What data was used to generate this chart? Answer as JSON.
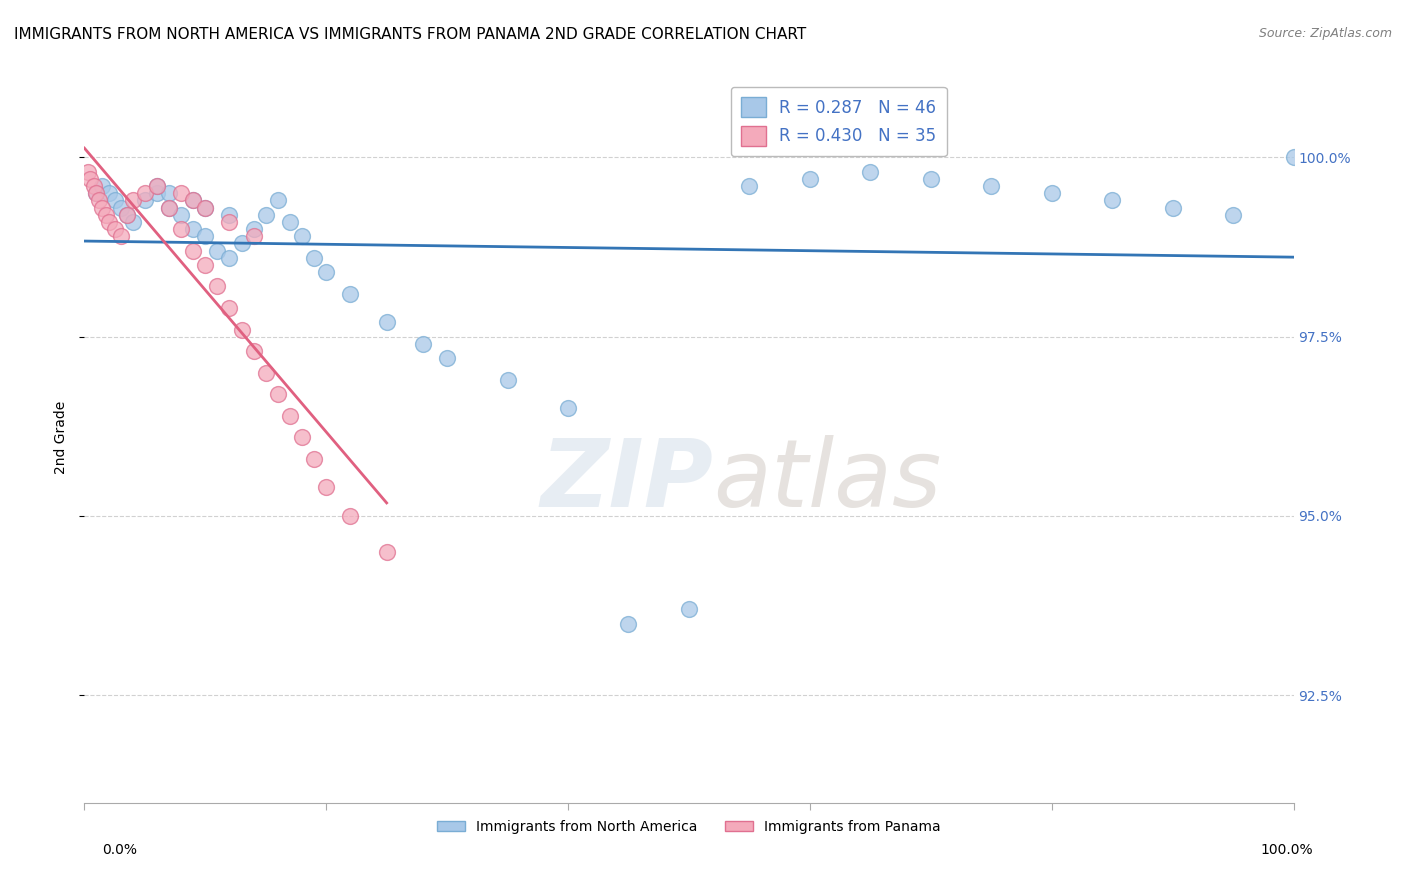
{
  "title": "IMMIGRANTS FROM NORTH AMERICA VS IMMIGRANTS FROM PANAMA 2ND GRADE CORRELATION CHART",
  "source": "Source: ZipAtlas.com",
  "ylabel": "2nd Grade",
  "y_ticks": [
    92.5,
    95.0,
    97.5,
    100.0
  ],
  "y_tick_labels": [
    "92.5%",
    "95.0%",
    "97.5%",
    "100.0%"
  ],
  "xlim": [
    0.0,
    1.0
  ],
  "ylim": [
    91.0,
    101.2
  ],
  "legend_label_blue": "Immigrants from North America",
  "legend_label_pink": "Immigrants from Panama",
  "r_blue": 0.287,
  "n_blue": 46,
  "r_pink": 0.43,
  "n_pink": 35,
  "blue_scatter_x": [
    0.01,
    0.015,
    0.02,
    0.025,
    0.03,
    0.035,
    0.04,
    0.05,
    0.06,
    0.07,
    0.08,
    0.09,
    0.1,
    0.11,
    0.12,
    0.13,
    0.14,
    0.15,
    0.16,
    0.17,
    0.18,
    0.19,
    0.2,
    0.22,
    0.25,
    0.28,
    0.3,
    0.35,
    0.4,
    0.45,
    0.5,
    0.55,
    0.6,
    0.65,
    0.7,
    0.75,
    0.8,
    0.85,
    0.9,
    0.95,
    1.0,
    0.06,
    0.07,
    0.09,
    0.1,
    0.12
  ],
  "blue_scatter_y": [
    99.5,
    99.6,
    99.5,
    99.4,
    99.3,
    99.2,
    99.1,
    99.4,
    99.5,
    99.3,
    99.2,
    99.0,
    98.9,
    98.7,
    98.6,
    98.8,
    99.0,
    99.2,
    99.4,
    99.1,
    98.9,
    98.6,
    98.4,
    98.1,
    97.7,
    97.4,
    97.2,
    96.9,
    96.5,
    93.5,
    93.7,
    99.6,
    99.7,
    99.8,
    99.7,
    99.6,
    99.5,
    99.4,
    99.3,
    99.2,
    100.0,
    99.6,
    99.5,
    99.4,
    99.3,
    99.2
  ],
  "pink_scatter_x": [
    0.003,
    0.005,
    0.008,
    0.01,
    0.012,
    0.015,
    0.018,
    0.02,
    0.025,
    0.03,
    0.035,
    0.04,
    0.05,
    0.06,
    0.07,
    0.08,
    0.09,
    0.1,
    0.11,
    0.12,
    0.13,
    0.14,
    0.15,
    0.16,
    0.17,
    0.18,
    0.19,
    0.2,
    0.22,
    0.25,
    0.08,
    0.09,
    0.1,
    0.12,
    0.14
  ],
  "pink_scatter_y": [
    99.8,
    99.7,
    99.6,
    99.5,
    99.4,
    99.3,
    99.2,
    99.1,
    99.0,
    98.9,
    99.2,
    99.4,
    99.5,
    99.6,
    99.3,
    99.0,
    98.7,
    98.5,
    98.2,
    97.9,
    97.6,
    97.3,
    97.0,
    96.7,
    96.4,
    96.1,
    95.8,
    95.4,
    95.0,
    94.5,
    99.5,
    99.4,
    99.3,
    99.1,
    98.9
  ],
  "watermark_zip": "ZIP",
  "watermark_atlas": "atlas",
  "blue_color": "#A8C8E8",
  "blue_edge_color": "#7AADD4",
  "pink_color": "#F4AABB",
  "pink_edge_color": "#E07090",
  "blue_line_color": "#3375B5",
  "pink_line_color": "#E06080",
  "grid_color": "#CCCCCC",
  "right_axis_color": "#4472C4",
  "title_fontsize": 11,
  "axis_label_fontsize": 9
}
